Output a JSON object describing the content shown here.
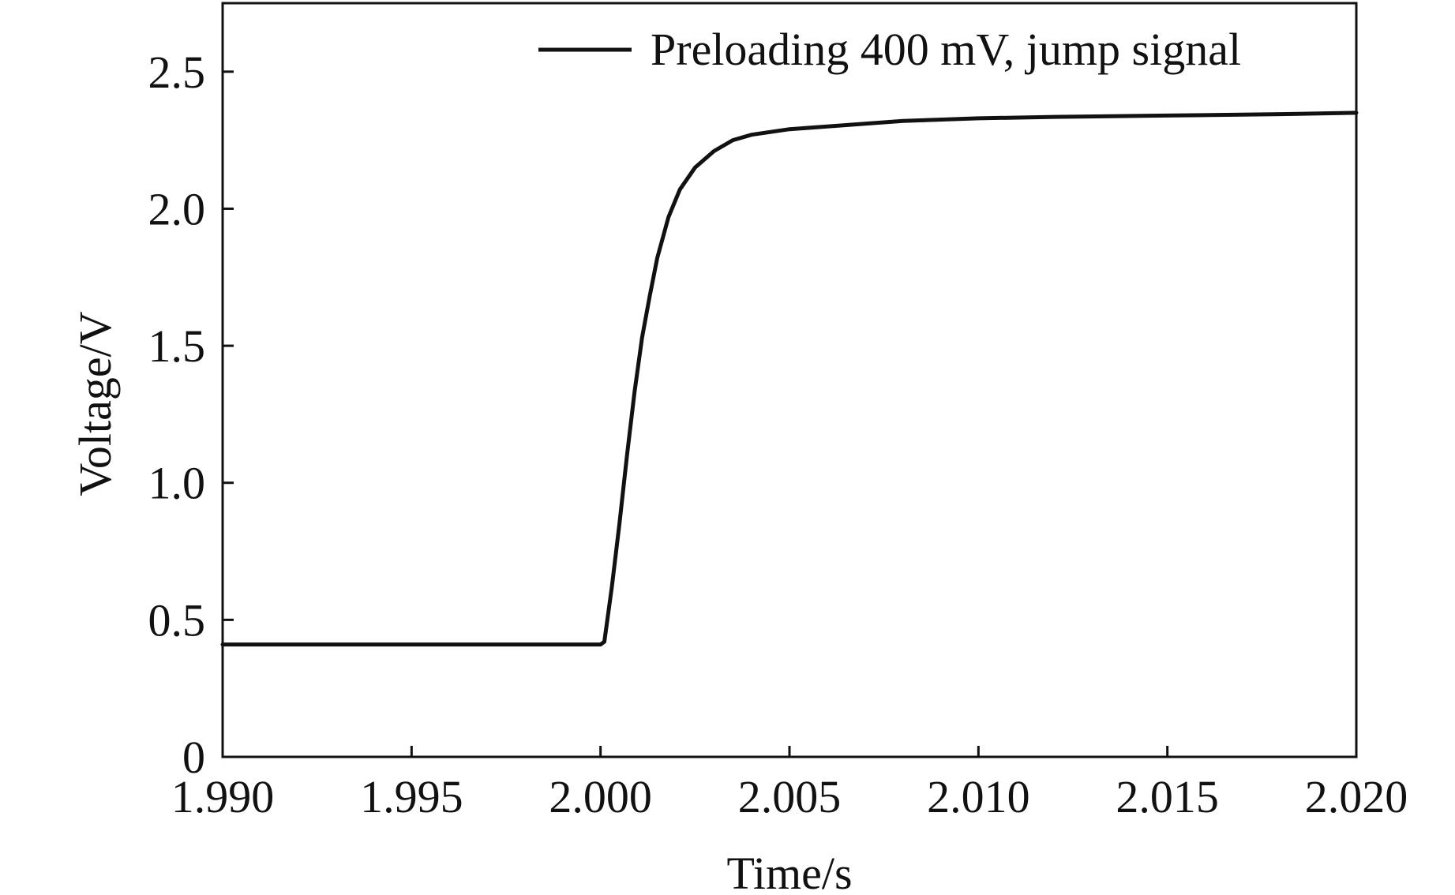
{
  "chart_data": {
    "type": "line",
    "xlabel": "Time/s",
    "ylabel": "Voltage/V",
    "xlim": [
      1.99,
      2.02
    ],
    "ylim": [
      0,
      2.75
    ],
    "x_ticks": [
      1.99,
      1.995,
      2.0,
      2.005,
      2.01,
      2.015,
      2.02
    ],
    "x_tick_labels": [
      "1.990",
      "1.995",
      "2.000",
      "2.005",
      "2.010",
      "2.015",
      "2.020"
    ],
    "y_ticks": [
      0,
      0.5,
      1.0,
      1.5,
      2.0,
      2.5
    ],
    "y_tick_labels": [
      "0",
      "0.5",
      "1.0",
      "1.5",
      "2.0",
      "2.5"
    ],
    "grid": false,
    "legend_position": "top-right",
    "series": [
      {
        "name": "Preloading 400 mV, jump signal",
        "color": "#111111",
        "x": [
          1.99,
          1.995,
          2.0,
          2.0001,
          2.0003,
          2.0005,
          2.0007,
          2.0009,
          2.0011,
          2.0013,
          2.0015,
          2.0018,
          2.0021,
          2.0025,
          2.003,
          2.0035,
          2.004,
          2.005,
          2.006,
          2.007,
          2.008,
          2.01,
          2.012,
          2.015,
          2.018,
          2.02
        ],
        "y": [
          0.41,
          0.41,
          0.41,
          0.42,
          0.62,
          0.85,
          1.1,
          1.33,
          1.53,
          1.68,
          1.82,
          1.97,
          2.07,
          2.15,
          2.21,
          2.25,
          2.27,
          2.29,
          2.3,
          2.31,
          2.32,
          2.33,
          2.335,
          2.34,
          2.345,
          2.35
        ]
      }
    ]
  }
}
